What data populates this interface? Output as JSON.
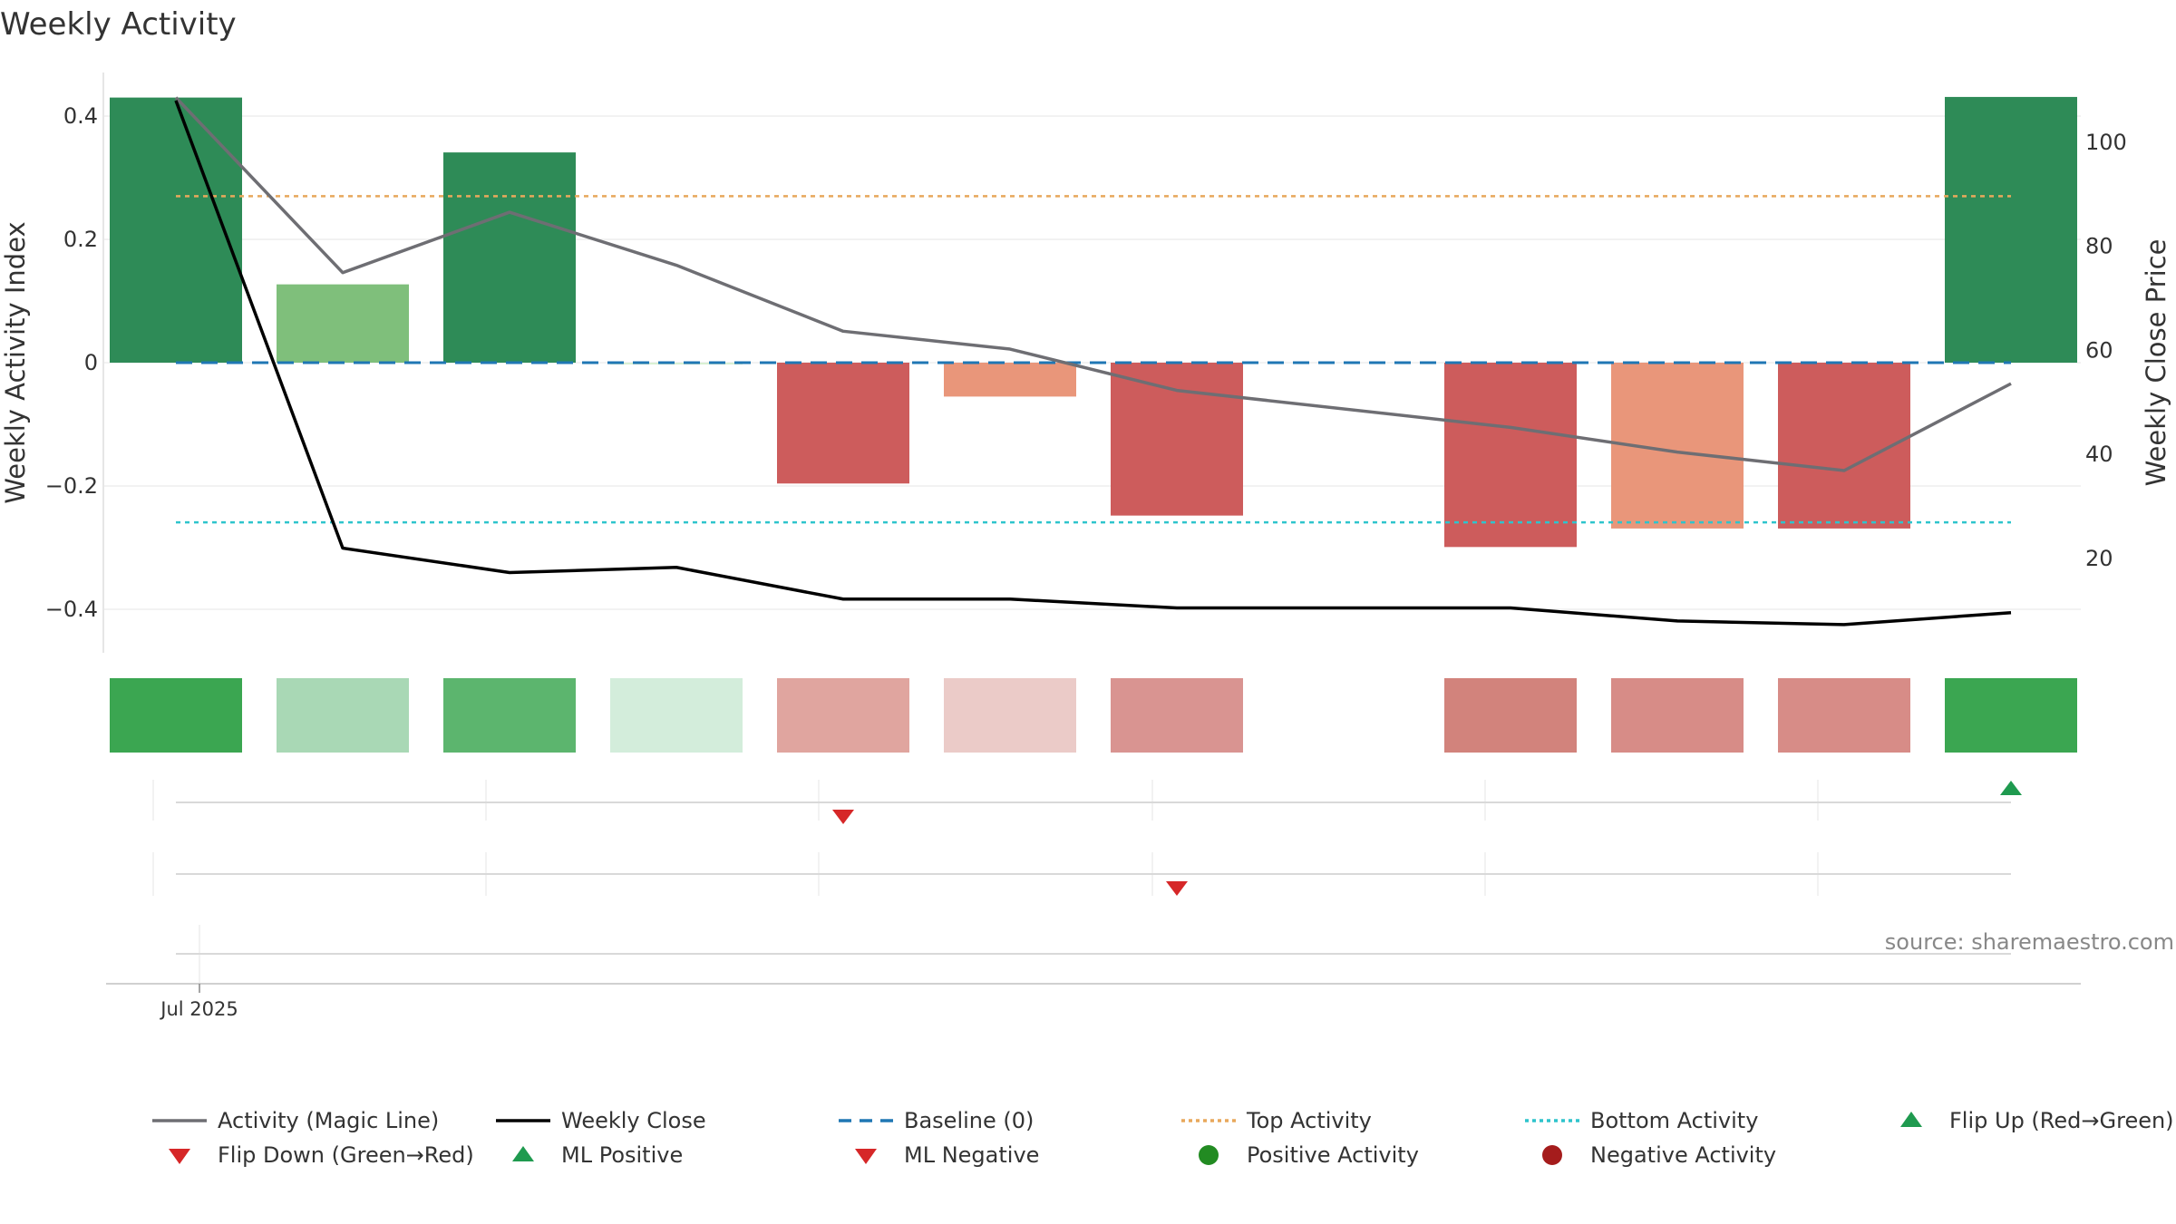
{
  "chart_data": {
    "type": "bar",
    "title": "Weekly Activity",
    "ylabel": "Weekly Activity Index",
    "y2label": "Weekly Close Price",
    "ylim": [
      -0.47,
      0.47
    ],
    "y2lim": [
      0,
      114
    ],
    "yticks": [
      {
        "value": 0.4,
        "label": "0.4"
      },
      {
        "value": 0.2,
        "label": "0.2"
      },
      {
        "value": 0,
        "label": "0"
      },
      {
        "value": -0.2,
        "label": "−0.2"
      },
      {
        "value": -0.4,
        "label": "−0.4"
      }
    ],
    "y2ticks": [
      100,
      80,
      60,
      40,
      20
    ],
    "xtick_label": "Jul 2025",
    "activity_values": [
      0.43,
      0.127,
      0.341,
      0.0,
      -0.196,
      -0.055,
      -0.248,
      null,
      -0.299,
      -0.269,
      -0.269,
      0.431
    ],
    "bar_colors": [
      "#2e8b57",
      "#7fbf7b",
      "#2e8b57",
      "#d9f0d3",
      "#cd5c5c",
      "#e9967a",
      "#cd5c5c",
      null,
      "#cd5c5c",
      "#e9967a",
      "#cd5c5c",
      "#2e8b57"
    ],
    "heat_colors": [
      "#3ba651",
      "#a9d8b5",
      "#5cb56e",
      "#d3eddb",
      "#e0a59f",
      "#ebcbc8",
      "#d99491",
      null,
      "#d2837c",
      "#d78c87",
      "#d78c87",
      "#3ba651"
    ],
    "magic_line": [
      0.43,
      0.146,
      0.244,
      0.158,
      0.051,
      0.022,
      -0.045,
      null,
      -0.105,
      -0.145,
      -0.175,
      -0.034
    ],
    "weekly_close": [
      108,
      22,
      17.3,
      18.3,
      12.2,
      12.2,
      10.5,
      null,
      10.5,
      8,
      7.3,
      9.6
    ],
    "baseline": 0,
    "top_activity": 0.27,
    "bottom_activity": -0.259,
    "flip_up": [
      11
    ],
    "flip_down": [
      4
    ],
    "ml_negative": [
      6
    ],
    "source": "source: sharemaestro.com",
    "colors": {
      "magic_line": "#6e6e73",
      "weekly_close": "#000000",
      "baseline": "#1f77b4",
      "top": "#e8a85c",
      "bottom": "#2ec4cc",
      "flip_up": "#1f9a4f",
      "flip_down": "#d62728",
      "positive": "#228b22",
      "negative": "#a51c1c"
    },
    "legend": [
      {
        "label": "Activity (Magic Line)",
        "kind": "line",
        "color": "#6e6e73",
        "dash": ""
      },
      {
        "label": "Weekly Close",
        "kind": "line",
        "color": "#000000",
        "dash": ""
      },
      {
        "label": "Baseline (0)",
        "kind": "line",
        "color": "#1f77b4",
        "dash": "14,9"
      },
      {
        "label": "Top Activity",
        "kind": "line",
        "color": "#e8a85c",
        "dash": "4,4"
      },
      {
        "label": "Bottom Activity",
        "kind": "line",
        "color": "#2ec4cc",
        "dash": "4,4"
      },
      {
        "label": "Flip Up (Red→Green)",
        "kind": "tri-up",
        "color": "#1f9a4f"
      },
      {
        "label": "Flip Down (Green→Red)",
        "kind": "tri-down",
        "color": "#d62728"
      },
      {
        "label": "ML Positive",
        "kind": "tri-up",
        "color": "#1f9a4f"
      },
      {
        "label": "ML Negative",
        "kind": "tri-down",
        "color": "#d62728"
      },
      {
        "label": "Positive Activity",
        "kind": "dot",
        "color": "#228b22"
      },
      {
        "label": "Negative Activity",
        "kind": "dot",
        "color": "#a51c1c"
      }
    ]
  }
}
